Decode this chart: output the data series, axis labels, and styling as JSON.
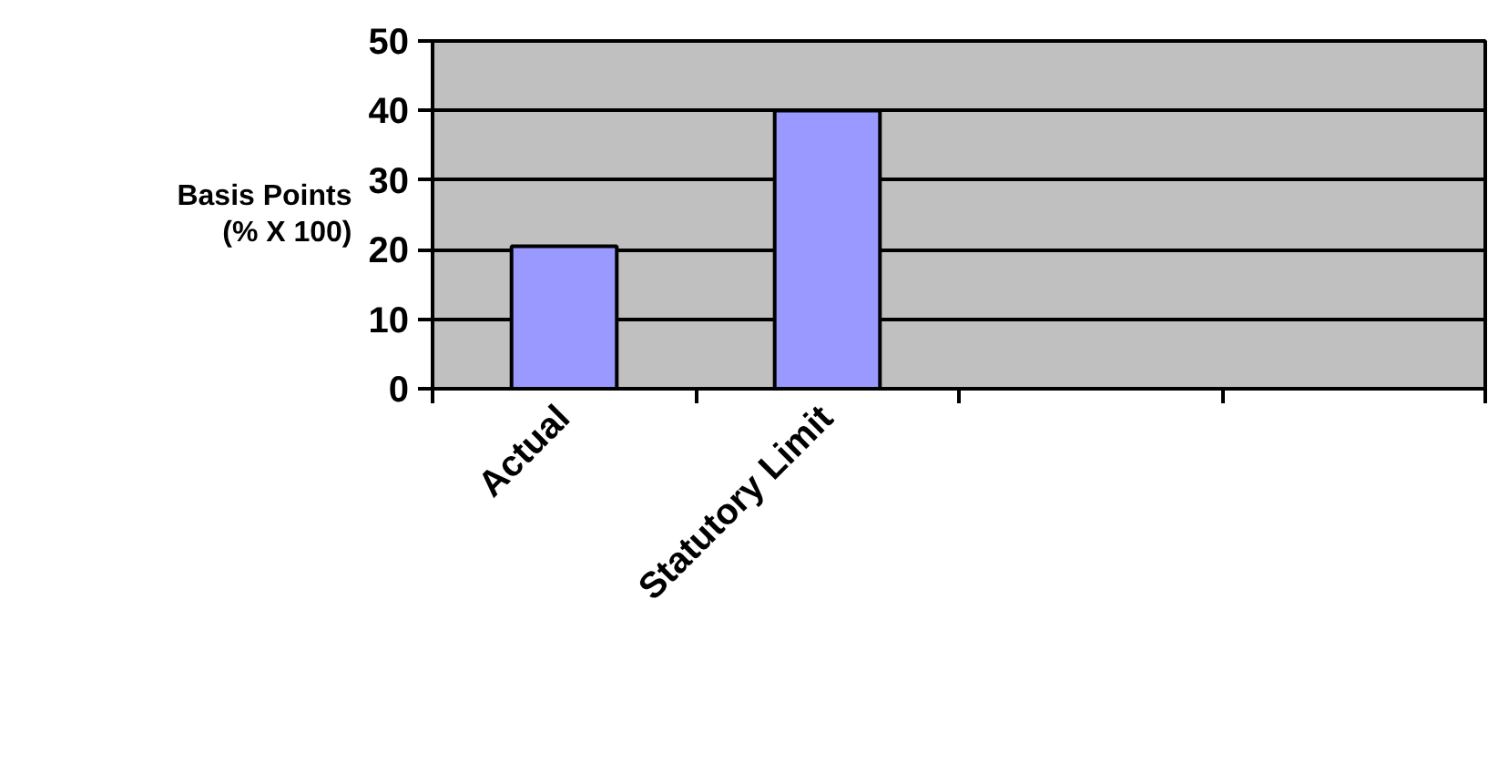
{
  "chart_data": {
    "type": "bar",
    "ylabel": "Basis Points\n(% X 100)",
    "categories": [
      "Actual",
      "Statutory Limit",
      null,
      null
    ],
    "values": [
      20.5,
      40,
      null,
      null
    ],
    "color": "#9999ff",
    "ylim": [
      0,
      50
    ],
    "yticks": [
      0,
      10,
      20,
      30,
      40,
      50
    ],
    "grid": "y"
  }
}
